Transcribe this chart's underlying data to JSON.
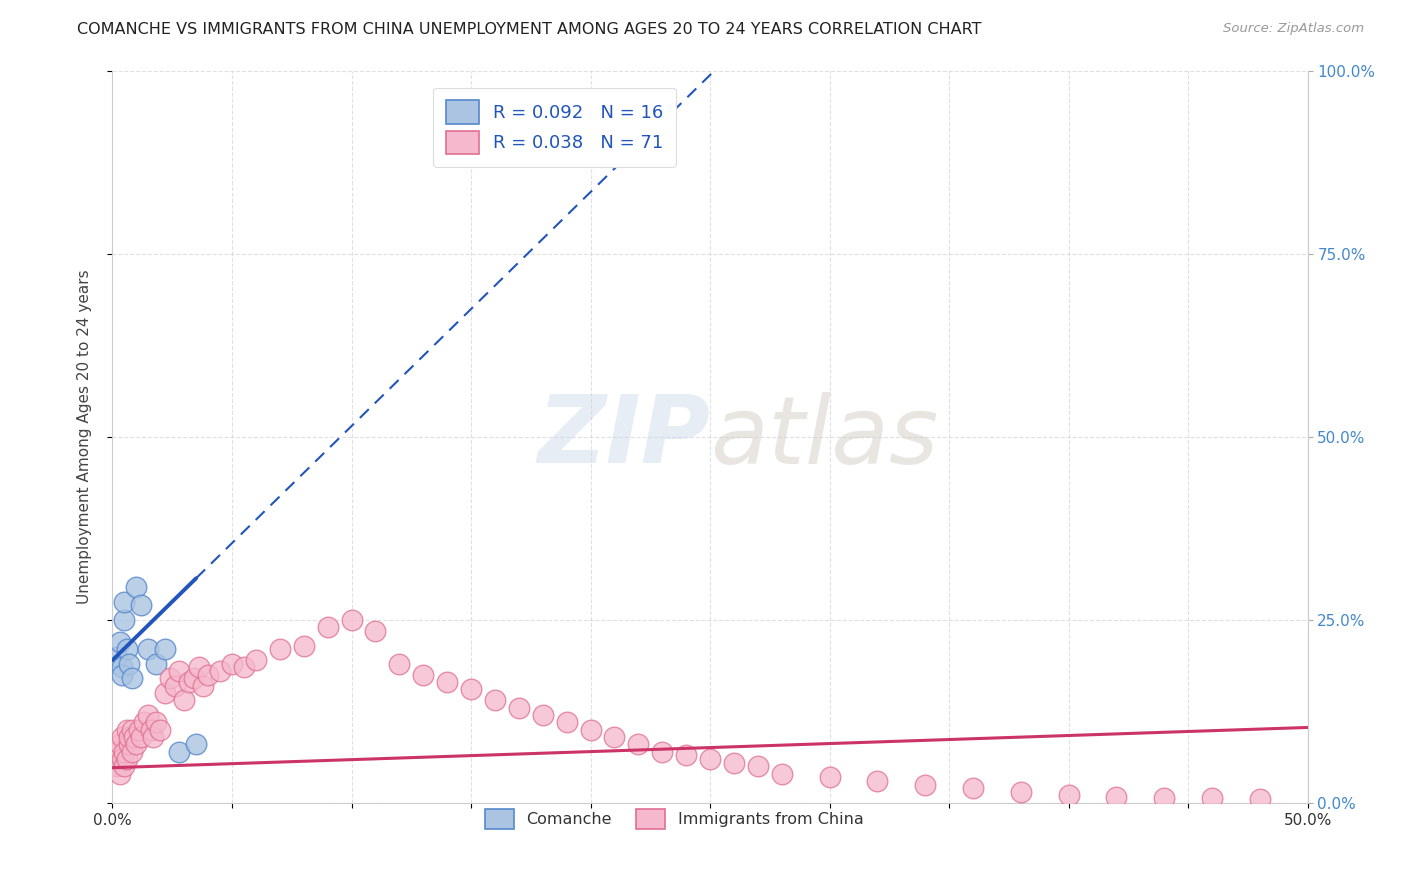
{
  "title": "COMANCHE VS IMMIGRANTS FROM CHINA UNEMPLOYMENT AMONG AGES 20 TO 24 YEARS CORRELATION CHART",
  "source": "Source: ZipAtlas.com",
  "ylabel": "Unemployment Among Ages 20 to 24 years",
  "xlim": [
    0.0,
    0.5
  ],
  "ylim": [
    0.0,
    1.0
  ],
  "xticks": [
    0.0,
    0.05,
    0.1,
    0.15,
    0.2,
    0.25,
    0.3,
    0.35,
    0.4,
    0.45,
    0.5
  ],
  "xtick_labels_shown": [
    "0.0%",
    "",
    "",
    "",
    "",
    "",
    "",
    "",
    "",
    "",
    "50.0%"
  ],
  "yticks": [
    0.0,
    0.25,
    0.5,
    0.75,
    1.0
  ],
  "ytick_labels_right": [
    "0.0%",
    "25.0%",
    "50.0%",
    "75.0%",
    "100.0%"
  ],
  "comanche_color": "#aac4e2",
  "comanche_edge_color": "#5588cc",
  "china_color": "#f5b8cc",
  "china_edge_color": "#e07090",
  "regression_blue_color": "#2255bb",
  "regression_pink_color": "#cc3366",
  "comanche_x": [
    0.002,
    0.003,
    0.004,
    0.004,
    0.005,
    0.005,
    0.006,
    0.007,
    0.008,
    0.01,
    0.012,
    0.015,
    0.018,
    0.022,
    0.028,
    0.035
  ],
  "comanche_y": [
    0.2,
    0.22,
    0.185,
    0.175,
    0.25,
    0.275,
    0.21,
    0.19,
    0.17,
    0.295,
    0.27,
    0.21,
    0.19,
    0.21,
    0.07,
    0.08
  ],
  "china_x": [
    0.001,
    0.002,
    0.002,
    0.003,
    0.003,
    0.004,
    0.004,
    0.005,
    0.005,
    0.006,
    0.006,
    0.007,
    0.007,
    0.008,
    0.008,
    0.009,
    0.01,
    0.011,
    0.012,
    0.013,
    0.015,
    0.016,
    0.017,
    0.018,
    0.02,
    0.022,
    0.024,
    0.026,
    0.028,
    0.03,
    0.032,
    0.034,
    0.036,
    0.038,
    0.04,
    0.045,
    0.05,
    0.055,
    0.06,
    0.07,
    0.08,
    0.09,
    0.1,
    0.11,
    0.12,
    0.13,
    0.14,
    0.15,
    0.16,
    0.17,
    0.18,
    0.19,
    0.2,
    0.21,
    0.22,
    0.23,
    0.24,
    0.25,
    0.26,
    0.27,
    0.28,
    0.3,
    0.32,
    0.34,
    0.36,
    0.38,
    0.4,
    0.42,
    0.44,
    0.46,
    0.48
  ],
  "china_y": [
    0.06,
    0.05,
    0.07,
    0.04,
    0.08,
    0.06,
    0.09,
    0.05,
    0.07,
    0.06,
    0.1,
    0.08,
    0.09,
    0.07,
    0.1,
    0.09,
    0.08,
    0.1,
    0.09,
    0.11,
    0.12,
    0.1,
    0.09,
    0.11,
    0.1,
    0.15,
    0.17,
    0.16,
    0.18,
    0.14,
    0.165,
    0.17,
    0.185,
    0.16,
    0.175,
    0.18,
    0.19,
    0.185,
    0.195,
    0.21,
    0.215,
    0.24,
    0.25,
    0.235,
    0.19,
    0.175,
    0.165,
    0.155,
    0.14,
    0.13,
    0.12,
    0.11,
    0.1,
    0.09,
    0.08,
    0.07,
    0.065,
    0.06,
    0.055,
    0.05,
    0.04,
    0.035,
    0.03,
    0.025,
    0.02,
    0.015,
    0.01,
    0.008,
    0.007,
    0.006,
    0.005
  ],
  "background_color": "#ffffff",
  "grid_color": "#cccccc",
  "watermark_zip": "ZIP",
  "watermark_atlas": "atlas",
  "legend_label1": "R = 0.092   N = 16",
  "legend_label2": "R = 0.038   N = 71",
  "legend_label_comanche": "Comanche",
  "legend_label_china": "Immigrants from China",
  "blue_regression_intercept": 0.195,
  "blue_regression_slope": 3.2,
  "pink_regression_intercept": 0.048,
  "pink_regression_slope": 0.11
}
